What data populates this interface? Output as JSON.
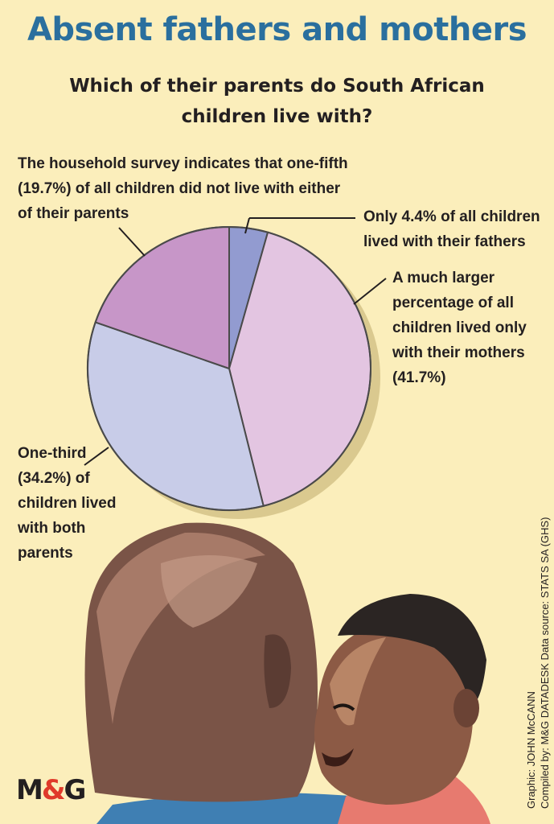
{
  "title": "Absent fathers and mothers",
  "subtitle_line1": "Which of their parents do South African",
  "subtitle_line2": "children live with?",
  "notes": {
    "neither": "The household survey indicates that one-fifth (19.7%) of all children did not live with either of their parents",
    "fathers": "Only 4.4% of all children lived with their fathers",
    "mothers": "A much larger percentage of all children lived only with their mothers (41.7%)",
    "both": "One-third (34.2%) of children lived with both parents"
  },
  "credits": {
    "graphic": "Graphic: JOHN McCANN",
    "compiled": "Compiled by: M&G DATADESK  Data source: STATS SA (GHS)"
  },
  "logo": {
    "m": "M",
    "amp": "&",
    "g": "G"
  },
  "colors": {
    "title": "#2a6f9e",
    "background": "#fbeebb",
    "fathers": "#929bd0",
    "mothers": "#e3c5e1",
    "both": "#c8cce8",
    "neither": "#c796c8"
  },
  "chart_data": {
    "type": "pie",
    "series": [
      {
        "label": "Only 4.4% of all children lived with their fathers",
        "value": 4.4,
        "color": "#929bd0"
      },
      {
        "label": "A much larger percentage of all children lived only with their mothers (41.7%)",
        "value": 41.7,
        "color": "#e3c5e1"
      },
      {
        "label": "One-third (34.2%) of children lived with both parents",
        "value": 34.2,
        "color": "#c8cce8"
      },
      {
        "label": "The household survey indicates that one-fifth (19.7%) of all children did not live with either of their parents",
        "value": 19.7,
        "color": "#c796c8"
      }
    ],
    "start": "top",
    "direction": "clockwise"
  }
}
